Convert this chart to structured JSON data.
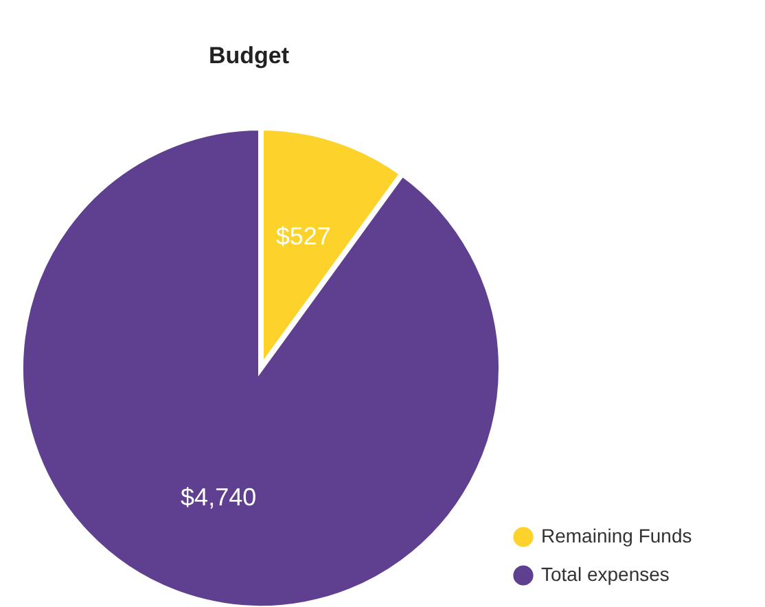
{
  "chart_data": {
    "type": "pie",
    "title": "Budget",
    "categories": [
      "Remaining Funds",
      "Total expenses"
    ],
    "values": [
      527,
      4740
    ],
    "colors": [
      "#fdd22b",
      "#5f3f8f"
    ],
    "value_labels": [
      "$527",
      "$4,740"
    ],
    "legend": "bottom right"
  }
}
